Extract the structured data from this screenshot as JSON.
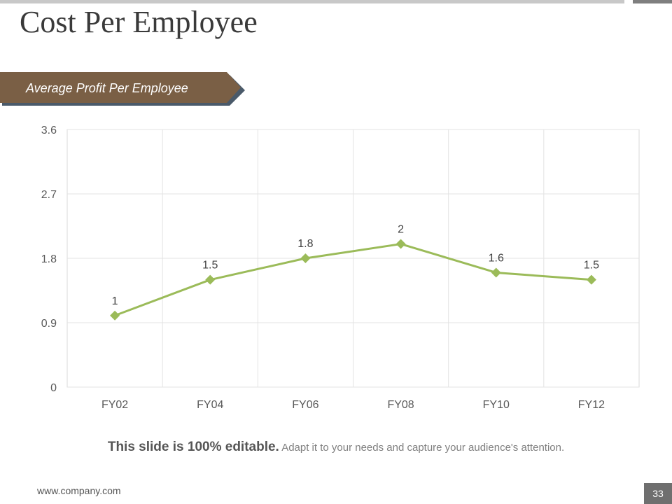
{
  "slide": {
    "title": "Cost Per Employee",
    "banner_label": "Average Profit Per Employee",
    "footer_bold": "This slide is 100% editable.",
    "footer_text": "Adapt it to your needs and capture your audience's attention.",
    "website": "www.company.com",
    "page_number": "33"
  },
  "colors": {
    "series": "#9bbb59",
    "banner_fill": "#7a5f45",
    "banner_shadow": "#4a5a6a",
    "grid": "#e3e3e3",
    "axis_text": "#595959"
  },
  "chart_data": {
    "type": "line",
    "categories": [
      "FY02",
      "FY04",
      "FY06",
      "FY08",
      "FY10",
      "FY12"
    ],
    "series": [
      {
        "values": [
          1,
          1.5,
          1.8,
          2,
          1.6,
          1.5
        ],
        "marker": "diamond"
      }
    ],
    "data_labels": [
      "1",
      "1.5",
      "1.8",
      "2",
      "1.6",
      "1.5"
    ],
    "yticks": [
      "0",
      "0.9",
      "1.8",
      "2.7",
      "3.6"
    ],
    "ylim": [
      0,
      3.6
    ],
    "grid": true,
    "legend": "none"
  }
}
